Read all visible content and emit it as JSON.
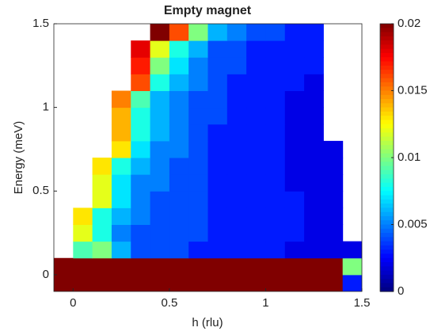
{
  "chart_data": {
    "type": "heatmap",
    "title": "Empty magnet",
    "xlabel": "h (rlu)",
    "ylabel": "Energy (meV)",
    "x": [
      -0.05,
      0.05,
      0.15,
      0.25,
      0.35,
      0.45,
      0.55,
      0.65,
      0.75,
      0.85,
      0.95,
      1.05,
      1.15,
      1.25,
      1.35,
      1.45
    ],
    "y": [
      -0.05,
      0.05,
      0.15,
      0.25,
      0.35,
      0.45,
      0.55,
      0.65,
      0.75,
      0.85,
      0.95,
      1.05,
      1.15,
      1.25,
      1.35,
      1.45
    ],
    "z": [
      [
        0.02,
        0.02,
        0.02,
        0.02,
        0.02,
        0.02,
        0.02,
        0.02,
        0.02,
        0.02,
        0.02,
        0.02,
        0.02,
        0.02,
        0.02,
        0.003
      ],
      [
        0.02,
        0.02,
        0.02,
        0.02,
        0.02,
        0.02,
        0.02,
        0.02,
        0.02,
        0.02,
        0.02,
        0.02,
        0.02,
        0.02,
        0.02,
        0.01
      ],
      [
        null,
        0.009,
        0.01,
        0.006,
        0.004,
        0.004,
        0.004,
        0.003,
        0.003,
        0.003,
        0.003,
        0.003,
        0.002,
        0.002,
        0.002,
        0.002
      ],
      [
        null,
        0.012,
        0.008,
        0.005,
        0.004,
        0.004,
        0.004,
        0.004,
        0.003,
        0.003,
        0.003,
        0.003,
        0.003,
        0.002,
        0.002,
        null
      ],
      [
        null,
        0.013,
        0.008,
        0.006,
        0.005,
        0.004,
        0.004,
        0.004,
        0.003,
        0.003,
        0.003,
        0.003,
        0.003,
        0.002,
        0.002,
        null
      ],
      [
        null,
        null,
        0.012,
        0.007,
        0.005,
        0.004,
        0.004,
        0.004,
        0.003,
        0.003,
        0.003,
        0.003,
        0.003,
        0.002,
        0.002,
        null
      ],
      [
        null,
        null,
        0.012,
        0.007,
        0.005,
        0.005,
        0.004,
        0.004,
        0.003,
        0.003,
        0.003,
        0.003,
        0.002,
        0.002,
        0.002,
        null
      ],
      [
        null,
        null,
        0.013,
        0.008,
        0.006,
        0.005,
        0.004,
        0.004,
        0.003,
        0.003,
        0.003,
        0.003,
        0.002,
        0.002,
        0.002,
        null
      ],
      [
        null,
        null,
        null,
        0.013,
        0.007,
        0.005,
        0.005,
        0.004,
        0.003,
        0.003,
        0.003,
        0.003,
        0.002,
        0.002,
        0.002,
        null
      ],
      [
        null,
        null,
        null,
        0.014,
        0.008,
        0.006,
        0.005,
        0.004,
        0.003,
        0.003,
        0.003,
        0.003,
        0.002,
        0.002,
        null,
        null
      ],
      [
        null,
        null,
        null,
        0.014,
        0.008,
        0.006,
        0.005,
        0.004,
        0.004,
        0.003,
        0.003,
        0.003,
        0.002,
        0.002,
        null,
        null
      ],
      [
        null,
        null,
        null,
        0.015,
        0.009,
        0.006,
        0.005,
        0.004,
        0.004,
        0.003,
        0.003,
        0.003,
        0.002,
        0.002,
        null,
        null
      ],
      [
        null,
        null,
        null,
        null,
        0.016,
        0.008,
        0.006,
        0.005,
        0.004,
        0.003,
        0.003,
        0.003,
        0.003,
        0.002,
        null,
        null
      ],
      [
        null,
        null,
        null,
        null,
        0.017,
        0.01,
        0.007,
        0.005,
        0.004,
        0.004,
        0.003,
        0.003,
        0.003,
        0.003,
        null,
        null
      ],
      [
        null,
        null,
        null,
        null,
        0.018,
        0.012,
        0.008,
        0.006,
        0.004,
        0.004,
        0.003,
        0.003,
        0.003,
        0.003,
        null,
        null
      ],
      [
        null,
        null,
        null,
        null,
        null,
        0.02,
        0.016,
        0.01,
        0.006,
        0.005,
        0.004,
        0.004,
        0.003,
        0.003,
        null,
        null
      ]
    ],
    "cell_width": 0.1,
    "cell_height": 0.1,
    "xlim": [
      -0.1,
      1.5
    ],
    "ylim": [
      -0.1,
      1.5
    ],
    "xticks": [
      0,
      0.5,
      1,
      1.5
    ],
    "yticks": [
      0,
      0.5,
      1,
      1.5
    ],
    "colormap": "jet",
    "clim": [
      0,
      0.02
    ],
    "cticks": [
      0,
      0.005,
      0.01,
      0.015,
      0.02
    ]
  }
}
